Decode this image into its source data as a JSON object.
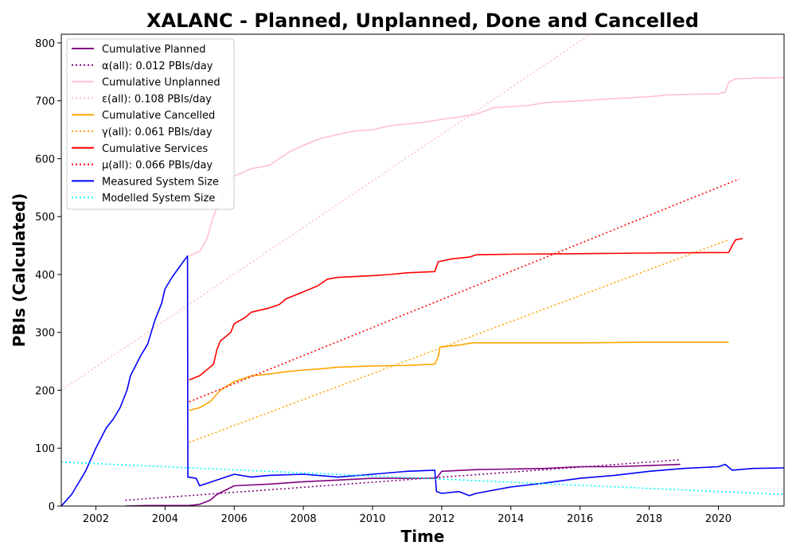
{
  "chart_data": {
    "type": "line",
    "title": "XALANC - Planned, Unplanned, Done  and Cancelled",
    "xlabel": "Time",
    "ylabel": "PBIs (Calculated)",
    "xlim": [
      2001.0,
      2021.9
    ],
    "ylim": [
      0,
      815
    ],
    "xticks": [
      2002,
      2004,
      2006,
      2008,
      2010,
      2012,
      2014,
      2016,
      2018,
      2020
    ],
    "yticks": [
      0,
      100,
      200,
      300,
      400,
      500,
      600,
      700,
      800
    ],
    "legend_position": "top-left",
    "grid": false,
    "series": [
      {
        "name": "Cumulative Planned",
        "style": "solid",
        "color": "#800080",
        "points": [
          [
            2002.85,
            0
          ],
          [
            2003.5,
            1
          ],
          [
            2004.0,
            1
          ],
          [
            2004.6,
            1
          ],
          [
            2004.7,
            1
          ],
          [
            2005.0,
            3
          ],
          [
            2005.3,
            10
          ],
          [
            2005.5,
            20
          ],
          [
            2006.0,
            35
          ],
          [
            2007.0,
            38
          ],
          [
            2008.0,
            42
          ],
          [
            2009.0,
            45
          ],
          [
            2010.0,
            48
          ],
          [
            2011.0,
            48
          ],
          [
            2011.85,
            48
          ],
          [
            2012.0,
            60
          ],
          [
            2013.0,
            63
          ],
          [
            2014.0,
            64
          ],
          [
            2015.0,
            65
          ],
          [
            2016.0,
            68
          ],
          [
            2017.0,
            68
          ],
          [
            2018.0,
            70
          ],
          [
            2018.9,
            72
          ]
        ]
      },
      {
        "name": "α(all): 0.012 PBIs/day",
        "style": "dotted",
        "color": "#800080",
        "points": [
          [
            2002.85,
            10
          ],
          [
            2018.9,
            80
          ]
        ]
      },
      {
        "name": "Cumulative Unplanned",
        "style": "solid",
        "color": "#ffc0cb",
        "points": [
          [
            2004.7,
            432
          ],
          [
            2005.0,
            440
          ],
          [
            2005.2,
            460
          ],
          [
            2005.4,
            500
          ],
          [
            2005.6,
            530
          ],
          [
            2006.0,
            570
          ],
          [
            2006.5,
            583
          ],
          [
            2007.0,
            588
          ],
          [
            2007.3,
            600
          ],
          [
            2007.6,
            612
          ],
          [
            2008.0,
            623
          ],
          [
            2008.5,
            635
          ],
          [
            2009.0,
            642
          ],
          [
            2009.5,
            648
          ],
          [
            2010.0,
            650
          ],
          [
            2010.5,
            657
          ],
          [
            2011.0,
            660
          ],
          [
            2011.5,
            663
          ],
          [
            2012.0,
            668
          ],
          [
            2012.5,
            672
          ],
          [
            2013.0,
            677
          ],
          [
            2013.5,
            688
          ],
          [
            2014.0,
            690
          ],
          [
            2014.5,
            692
          ],
          [
            2015.0,
            697
          ],
          [
            2016.0,
            700
          ],
          [
            2017.0,
            704
          ],
          [
            2018.0,
            707
          ],
          [
            2018.5,
            710
          ],
          [
            2019.0,
            711
          ],
          [
            2020.0,
            712
          ],
          [
            2020.2,
            715
          ],
          [
            2020.3,
            732
          ],
          [
            2020.5,
            738
          ],
          [
            2021.0,
            739
          ],
          [
            2021.9,
            740
          ]
        ]
      },
      {
        "name": "ε(all): 0.108 PBIs/day",
        "style": "dotted",
        "color": "#ffc0cb",
        "points": [
          [
            2001.0,
            200
          ],
          [
            2016.3,
            815
          ]
        ]
      },
      {
        "name": "Cumulative Cancelled",
        "style": "solid",
        "color": "#ffa500",
        "points": [
          [
            2004.7,
            165
          ],
          [
            2005.0,
            170
          ],
          [
            2005.3,
            180
          ],
          [
            2005.6,
            200
          ],
          [
            2006.0,
            215
          ],
          [
            2006.5,
            225
          ],
          [
            2007.0,
            228
          ],
          [
            2007.5,
            232
          ],
          [
            2008.0,
            235
          ],
          [
            2008.5,
            237
          ],
          [
            2009.0,
            240
          ],
          [
            2010.0,
            242
          ],
          [
            2011.0,
            243
          ],
          [
            2011.8,
            245
          ],
          [
            2011.9,
            258
          ],
          [
            2011.95,
            275
          ],
          [
            2012.5,
            278
          ],
          [
            2012.9,
            282
          ],
          [
            2014.0,
            282
          ],
          [
            2016.0,
            282
          ],
          [
            2018.0,
            283
          ],
          [
            2020.3,
            283
          ]
        ]
      },
      {
        "name": "γ(all): 0.061 PBIs/day",
        "style": "dotted",
        "color": "#ffa500",
        "points": [
          [
            2004.7,
            110
          ],
          [
            2020.3,
            460
          ]
        ]
      },
      {
        "name": "Cumulative Services",
        "style": "solid",
        "color": "#ff0000",
        "points": [
          [
            2004.7,
            218
          ],
          [
            2005.0,
            225
          ],
          [
            2005.4,
            245
          ],
          [
            2005.5,
            270
          ],
          [
            2005.6,
            285
          ],
          [
            2005.9,
            300
          ],
          [
            2006.0,
            315
          ],
          [
            2006.3,
            325
          ],
          [
            2006.5,
            335
          ],
          [
            2007.0,
            342
          ],
          [
            2007.3,
            348
          ],
          [
            2007.5,
            358
          ],
          [
            2008.0,
            370
          ],
          [
            2008.4,
            380
          ],
          [
            2008.7,
            392
          ],
          [
            2009.0,
            395
          ],
          [
            2010.0,
            398
          ],
          [
            2010.5,
            400
          ],
          [
            2011.0,
            403
          ],
          [
            2011.8,
            405
          ],
          [
            2011.9,
            422
          ],
          [
            2012.3,
            427
          ],
          [
            2012.8,
            430
          ],
          [
            2013.0,
            434
          ],
          [
            2014.0,
            435
          ],
          [
            2016.0,
            436
          ],
          [
            2018.0,
            437
          ],
          [
            2020.3,
            438
          ],
          [
            2020.4,
            450
          ],
          [
            2020.5,
            460
          ],
          [
            2020.7,
            462
          ]
        ]
      },
      {
        "name": "μ(all): 0.066 PBIs/day",
        "style": "dotted",
        "color": "#ff0000",
        "points": [
          [
            2004.7,
            180
          ],
          [
            2020.6,
            565
          ]
        ]
      },
      {
        "name": "Measured System Size",
        "style": "solid",
        "color": "#0000ff",
        "points": [
          [
            2001.0,
            0
          ],
          [
            2001.3,
            20
          ],
          [
            2001.5,
            40
          ],
          [
            2001.7,
            60
          ],
          [
            2002.0,
            100
          ],
          [
            2002.3,
            135
          ],
          [
            2002.5,
            150
          ],
          [
            2002.7,
            170
          ],
          [
            2002.9,
            200
          ],
          [
            2003.0,
            225
          ],
          [
            2003.3,
            260
          ],
          [
            2003.5,
            280
          ],
          [
            2003.7,
            320
          ],
          [
            2003.9,
            350
          ],
          [
            2004.0,
            375
          ],
          [
            2004.2,
            395
          ],
          [
            2004.5,
            420
          ],
          [
            2004.65,
            432
          ],
          [
            2004.66,
            50
          ],
          [
            2004.9,
            48
          ],
          [
            2005.0,
            35
          ],
          [
            2005.5,
            45
          ],
          [
            2006.0,
            55
          ],
          [
            2006.5,
            50
          ],
          [
            2007.0,
            53
          ],
          [
            2008.0,
            55
          ],
          [
            2009.0,
            50
          ],
          [
            2010.0,
            55
          ],
          [
            2011.0,
            60
          ],
          [
            2011.8,
            62
          ],
          [
            2011.85,
            25
          ],
          [
            2012.0,
            22
          ],
          [
            2012.5,
            25
          ],
          [
            2012.8,
            18
          ],
          [
            2013.0,
            22
          ],
          [
            2014.0,
            33
          ],
          [
            2015.0,
            40
          ],
          [
            2016.0,
            48
          ],
          [
            2017.0,
            53
          ],
          [
            2018.0,
            60
          ],
          [
            2019.0,
            65
          ],
          [
            2020.0,
            68
          ],
          [
            2020.2,
            72
          ],
          [
            2020.4,
            62
          ],
          [
            2021.0,
            65
          ],
          [
            2021.9,
            66
          ]
        ]
      },
      {
        "name": "Modelled System Size",
        "style": "dotted",
        "color": "#00ffff",
        "points": [
          [
            2001.0,
            76
          ],
          [
            2021.9,
            20
          ]
        ]
      }
    ]
  }
}
